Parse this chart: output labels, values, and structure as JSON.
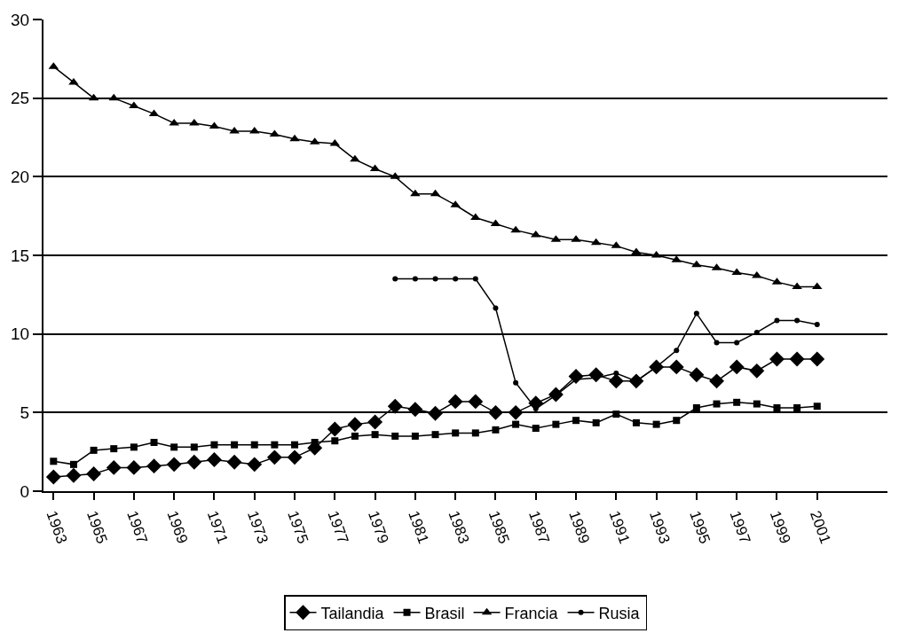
{
  "chart_data": {
    "type": "line",
    "x": [
      1963,
      1964,
      1965,
      1966,
      1967,
      1968,
      1969,
      1970,
      1971,
      1972,
      1973,
      1974,
      1975,
      1976,
      1977,
      1978,
      1979,
      1980,
      1981,
      1982,
      1983,
      1984,
      1985,
      1986,
      1987,
      1988,
      1989,
      1990,
      1991,
      1992,
      1993,
      1994,
      1995,
      1996,
      1997,
      1998,
      1999,
      2000,
      2001
    ],
    "series": [
      {
        "name": "Tailandia",
        "color": "#000000",
        "marker": "diamond",
        "values": [
          0.9,
          1.0,
          1.1,
          1.5,
          1.5,
          1.6,
          1.7,
          1.85,
          2.0,
          1.85,
          1.7,
          2.15,
          2.15,
          2.75,
          3.95,
          4.25,
          4.4,
          5.4,
          5.2,
          4.95,
          5.7,
          5.7,
          5.0,
          5.0,
          5.6,
          6.15,
          7.3,
          7.4,
          7.0,
          7.0,
          7.9,
          7.9,
          7.4,
          7.0,
          7.9,
          7.65,
          8.4,
          8.4,
          8.4
        ]
      },
      {
        "name": "Brasil",
        "color": "#000000",
        "marker": "square",
        "values": [
          1.9,
          1.7,
          2.6,
          2.7,
          2.8,
          3.1,
          2.8,
          2.8,
          2.95,
          2.95,
          2.95,
          2.95,
          2.95,
          3.1,
          3.2,
          3.5,
          3.6,
          3.5,
          3.5,
          3.6,
          3.7,
          3.7,
          3.9,
          4.25,
          4.0,
          4.25,
          4.5,
          4.35,
          4.9,
          4.35,
          4.25,
          4.5,
          5.3,
          5.55,
          5.65,
          5.55,
          5.3,
          5.3,
          5.4
        ]
      },
      {
        "name": "Francia",
        "color": "#000000",
        "marker": "triangle",
        "values": [
          27,
          26,
          25,
          25,
          24.5,
          24,
          23.4,
          23.4,
          23.2,
          22.9,
          22.9,
          22.7,
          22.4,
          22.2,
          22.1,
          21.1,
          20.5,
          20,
          18.9,
          18.9,
          18.2,
          17.4,
          17,
          16.6,
          16.3,
          16,
          16,
          15.8,
          15.6,
          15.2,
          15,
          14.7,
          14.4,
          14.2,
          13.9,
          13.7,
          13.3,
          13,
          13
        ]
      },
      {
        "name": "Rusia",
        "color": "#000000",
        "marker": "circle",
        "values": [
          null,
          null,
          null,
          null,
          null,
          null,
          null,
          null,
          null,
          null,
          null,
          null,
          null,
          null,
          null,
          null,
          null,
          13.5,
          13.5,
          13.5,
          13.5,
          13.5,
          11.65,
          6.9,
          5.25,
          6.1,
          7.1,
          7.2,
          7.5,
          7.0,
          7.9,
          8.95,
          11.3,
          9.45,
          9.45,
          10.1,
          10.85,
          10.85,
          10.6
        ]
      }
    ],
    "xlim": [
      1962.5,
      2004.5
    ],
    "xticks": [
      1963,
      1965,
      1967,
      1969,
      1971,
      1973,
      1975,
      1977,
      1979,
      1981,
      1983,
      1985,
      1987,
      1989,
      1991,
      1993,
      1995,
      1997,
      1999,
      2001
    ],
    "ylim": [
      0,
      30
    ],
    "yticks": [
      0,
      5,
      10,
      15,
      20,
      25,
      30
    ],
    "grid": "y",
    "legend": "bottom",
    "line_style": "solid"
  }
}
